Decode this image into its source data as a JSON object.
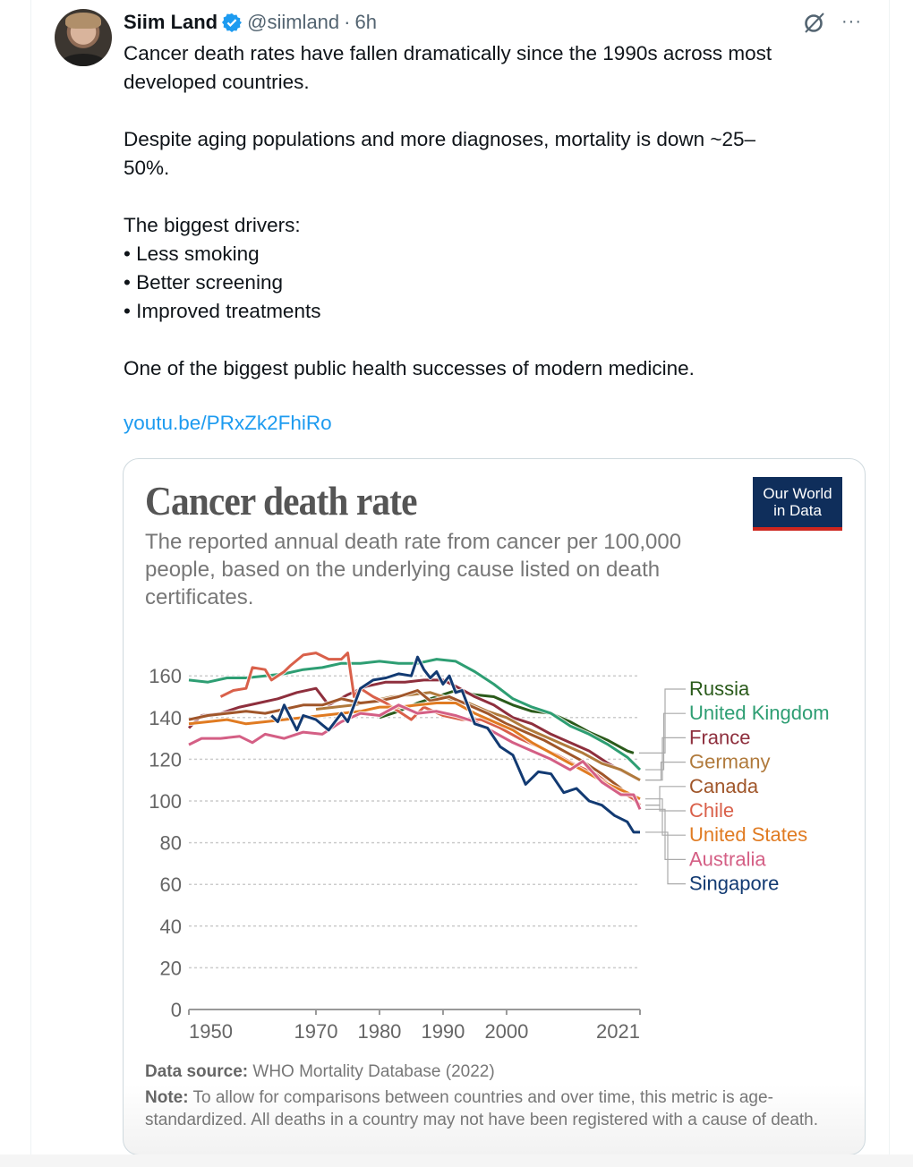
{
  "tweet": {
    "author_name": "Siim Land",
    "handle": "@siimland",
    "separator": "·",
    "time": "6h",
    "verified": true,
    "icons": [
      "avatar",
      "verified-badge-icon",
      "grok-icon",
      "more-options-icon"
    ],
    "text": "Cancer death rates have fallen dramatically since the 1990s across most\ndeveloped countries.\n\nDespite aging populations and more diagnoses, mortality is down ~25–\n50%.\n\nThe biggest drivers:\n• Less smoking\n• Better screening\n• Improved treatments\n\nOne of the biggest public health successes of modern medicine.",
    "link": "youtu.be/PRxZk2FhiRo",
    "more_label": "···"
  },
  "card": {
    "logo_line1": "Our World",
    "logo_line2": "in Data",
    "source_label": "Data source:",
    "source_text": " WHO Mortality Database (2022)",
    "note_label": "Note:",
    "note_text": " To allow for comparisons between countries and over time, this metric is age-standardized. All deaths in a country may not have been registered with a cause of death."
  },
  "chart_data": {
    "type": "line",
    "title": "Cancer death rate",
    "subtitle": "The reported annual death rate from cancer per 100,000 people, based on the underlying cause listed on death certificates.",
    "xlabel": "",
    "ylabel": "",
    "xlim": [
      1950,
      2021
    ],
    "ylim": [
      0,
      170
    ],
    "x_ticks": [
      1950,
      1970,
      1980,
      1990,
      2000,
      2021
    ],
    "y_ticks": [
      0,
      20,
      40,
      60,
      80,
      100,
      120,
      140,
      160
    ],
    "grid": true,
    "legend_placement": "right-labels",
    "series": [
      {
        "name": "Russia",
        "color": "#2a5a1a",
        "points": [
          [
            1980,
            140
          ],
          [
            1983,
            143
          ],
          [
            1986,
            147
          ],
          [
            1989,
            150
          ],
          [
            1992,
            153
          ],
          [
            1995,
            151
          ],
          [
            1998,
            150
          ],
          [
            2001,
            146
          ],
          [
            2004,
            143
          ],
          [
            2007,
            142
          ],
          [
            2010,
            138
          ],
          [
            2013,
            133
          ],
          [
            2016,
            129
          ],
          [
            2019,
            124
          ],
          [
            2020,
            123
          ]
        ]
      },
      {
        "name": "United Kingdom",
        "color": "#2e9e73",
        "points": [
          [
            1950,
            158
          ],
          [
            1953,
            157
          ],
          [
            1956,
            159
          ],
          [
            1959,
            159
          ],
          [
            1962,
            160
          ],
          [
            1965,
            161
          ],
          [
            1968,
            163
          ],
          [
            1971,
            164
          ],
          [
            1974,
            166
          ],
          [
            1977,
            166
          ],
          [
            1980,
            167
          ],
          [
            1983,
            166
          ],
          [
            1986,
            166
          ],
          [
            1989,
            168
          ],
          [
            1992,
            167
          ],
          [
            1995,
            162
          ],
          [
            1998,
            156
          ],
          [
            2001,
            149
          ],
          [
            2004,
            145
          ],
          [
            2007,
            142
          ],
          [
            2010,
            136
          ],
          [
            2013,
            132
          ],
          [
            2016,
            127
          ],
          [
            2019,
            121
          ],
          [
            2021,
            115
          ]
        ]
      },
      {
        "name": "France",
        "color": "#8e2f3d",
        "points": [
          [
            1950,
            135
          ],
          [
            1952,
            141
          ],
          [
            1955,
            142
          ],
          [
            1958,
            145
          ],
          [
            1961,
            147
          ],
          [
            1964,
            149
          ],
          [
            1967,
            152
          ],
          [
            1970,
            154
          ],
          [
            1972,
            146
          ],
          [
            1975,
            151
          ],
          [
            1978,
            155
          ],
          [
            1981,
            157
          ],
          [
            1984,
            157
          ],
          [
            1987,
            158
          ],
          [
            1990,
            158
          ],
          [
            1992,
            155
          ],
          [
            1995,
            150
          ],
          [
            1998,
            146
          ],
          [
            2001,
            140
          ],
          [
            2004,
            137
          ],
          [
            2007,
            132
          ],
          [
            2010,
            128
          ],
          [
            2013,
            124
          ],
          [
            2016,
            118
          ],
          [
            2019,
            113
          ],
          [
            2021,
            110
          ]
        ]
      },
      {
        "name": "Germany",
        "color": "#b07a3c",
        "points": [
          [
            1970,
            144
          ],
          [
            1973,
            145
          ],
          [
            1976,
            146
          ],
          [
            1979,
            148
          ],
          [
            1982,
            150
          ],
          [
            1985,
            151
          ],
          [
            1988,
            152
          ],
          [
            1991,
            149
          ],
          [
            1994,
            147
          ],
          [
            1997,
            143
          ],
          [
            2000,
            140
          ],
          [
            2003,
            135
          ],
          [
            2006,
            131
          ],
          [
            2009,
            127
          ],
          [
            2012,
            123
          ],
          [
            2015,
            118
          ],
          [
            2018,
            115
          ],
          [
            2021,
            110
          ]
        ]
      },
      {
        "name": "Canada",
        "color": "#a0562a",
        "points": [
          [
            1950,
            139
          ],
          [
            1953,
            141
          ],
          [
            1956,
            142
          ],
          [
            1959,
            143
          ],
          [
            1962,
            142
          ],
          [
            1965,
            144
          ],
          [
            1968,
            146
          ],
          [
            1971,
            146
          ],
          [
            1974,
            149
          ],
          [
            1977,
            147
          ],
          [
            1980,
            148
          ],
          [
            1983,
            150
          ],
          [
            1986,
            153
          ],
          [
            1988,
            148
          ],
          [
            1991,
            150
          ],
          [
            1994,
            146
          ],
          [
            1997,
            142
          ],
          [
            2000,
            137
          ],
          [
            2003,
            133
          ],
          [
            2006,
            129
          ],
          [
            2009,
            124
          ],
          [
            2012,
            119
          ],
          [
            2015,
            113
          ],
          [
            2018,
            106
          ],
          [
            2021,
            98
          ]
        ]
      },
      {
        "name": "Chile",
        "color": "#d9604a",
        "points": [
          [
            1955,
            150
          ],
          [
            1957,
            153
          ],
          [
            1959,
            154
          ],
          [
            1960,
            164
          ],
          [
            1962,
            163
          ],
          [
            1963,
            158
          ],
          [
            1965,
            162
          ],
          [
            1966,
            165
          ],
          [
            1968,
            170
          ],
          [
            1970,
            171
          ],
          [
            1972,
            168
          ],
          [
            1974,
            168
          ],
          [
            1975,
            171
          ],
          [
            1976,
            150
          ],
          [
            1977,
            154
          ],
          [
            1979,
            150
          ],
          [
            1981,
            147
          ],
          [
            1983,
            143
          ],
          [
            1985,
            139
          ],
          [
            1987,
            145
          ],
          [
            1990,
            141
          ],
          [
            1993,
            139
          ],
          [
            1996,
            139
          ],
          [
            1999,
            135
          ],
          [
            2002,
            130
          ],
          [
            2005,
            126
          ],
          [
            2008,
            122
          ],
          [
            2011,
            117
          ],
          [
            2014,
            113
          ],
          [
            2017,
            106
          ],
          [
            2020,
            101
          ],
          [
            2021,
            98
          ]
        ]
      },
      {
        "name": "United States",
        "color": "#e07b22",
        "points": [
          [
            1950,
            137
          ],
          [
            1953,
            138
          ],
          [
            1956,
            139
          ],
          [
            1959,
            137
          ],
          [
            1962,
            138
          ],
          [
            1965,
            139
          ],
          [
            1968,
            140
          ],
          [
            1971,
            141
          ],
          [
            1974,
            142
          ],
          [
            1977,
            143
          ],
          [
            1980,
            145
          ],
          [
            1983,
            145
          ],
          [
            1986,
            146
          ],
          [
            1989,
            147
          ],
          [
            1992,
            147
          ],
          [
            1995,
            142
          ],
          [
            1998,
            138
          ],
          [
            2001,
            134
          ],
          [
            2004,
            128
          ],
          [
            2007,
            123
          ],
          [
            2010,
            118
          ],
          [
            2013,
            113
          ],
          [
            2016,
            108
          ],
          [
            2019,
            104
          ],
          [
            2021,
            101
          ]
        ]
      },
      {
        "name": "Australia",
        "color": "#d45f85",
        "points": [
          [
            1950,
            127
          ],
          [
            1952,
            130
          ],
          [
            1955,
            130
          ],
          [
            1958,
            131
          ],
          [
            1960,
            128
          ],
          [
            1962,
            132
          ],
          [
            1965,
            130
          ],
          [
            1968,
            133
          ],
          [
            1971,
            132
          ],
          [
            1974,
            138
          ],
          [
            1977,
            142
          ],
          [
            1980,
            141
          ],
          [
            1983,
            146
          ],
          [
            1986,
            142
          ],
          [
            1989,
            143
          ],
          [
            1992,
            141
          ],
          [
            1995,
            138
          ],
          [
            1998,
            133
          ],
          [
            2001,
            128
          ],
          [
            2004,
            124
          ],
          [
            2007,
            120
          ],
          [
            2010,
            115
          ],
          [
            2012,
            119
          ],
          [
            2015,
            109
          ],
          [
            2018,
            103
          ],
          [
            2020,
            103
          ],
          [
            2021,
            96
          ]
        ]
      },
      {
        "name": "Singapore",
        "color": "#123a72",
        "points": [
          [
            1963,
            141
          ],
          [
            1964,
            138
          ],
          [
            1965,
            146
          ],
          [
            1967,
            134
          ],
          [
            1968,
            141
          ],
          [
            1970,
            139
          ],
          [
            1972,
            134
          ],
          [
            1974,
            142
          ],
          [
            1975,
            138
          ],
          [
            1977,
            154
          ],
          [
            1979,
            158
          ],
          [
            1981,
            159
          ],
          [
            1983,
            161
          ],
          [
            1985,
            160
          ],
          [
            1986,
            169
          ],
          [
            1987,
            163
          ],
          [
            1988,
            159
          ],
          [
            1989,
            162
          ],
          [
            1990,
            156
          ],
          [
            1991,
            160
          ],
          [
            1992,
            152
          ],
          [
            1993,
            153
          ],
          [
            1995,
            137
          ],
          [
            1997,
            135
          ],
          [
            1999,
            126
          ],
          [
            2001,
            122
          ],
          [
            2003,
            108
          ],
          [
            2005,
            114
          ],
          [
            2007,
            113
          ],
          [
            2009,
            104
          ],
          [
            2011,
            106
          ],
          [
            2013,
            100
          ],
          [
            2015,
            98
          ],
          [
            2017,
            93
          ],
          [
            2019,
            90
          ],
          [
            2020,
            85
          ],
          [
            2021,
            85
          ]
        ]
      }
    ],
    "label_order": [
      "Russia",
      "United Kingdom",
      "France",
      "Germany",
      "Canada",
      "Chile",
      "United States",
      "Australia",
      "Singapore"
    ]
  }
}
